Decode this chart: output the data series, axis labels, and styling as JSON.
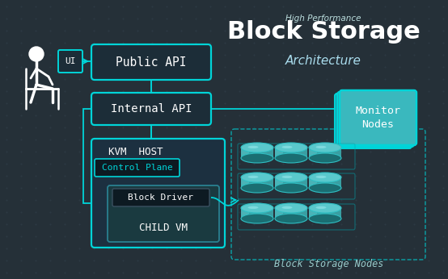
{
  "bg_color": "#253038",
  "cyan": "#00d4d8",
  "dark_box": "#1c2d38",
  "darker_box": "#0d1a22",
  "child_vm_box": "#1a3a40",
  "white": "#ffffff",
  "title_main": "Block Storage",
  "title_sub": "High Performance",
  "title_arch": "Architecture",
  "label_ui": "UI",
  "label_public_api": "Public API",
  "label_internal_api": "Internal API",
  "label_monitor": "Monitor\nNodes",
  "label_kvm": "KVM  HOST",
  "label_control_plane": "Control Plane",
  "label_block_driver": "Block Driver",
  "label_child_vm": "CHILD VM",
  "label_block_storage_nodes": "Block Storage Nodes",
  "disk_top": "#5ac8cc",
  "disk_mid": "#3a9ea2",
  "disk_dark": "#1a6e72",
  "disk_edge": "#30c0c4",
  "monitor_face": "#3ab8be",
  "monitor_side": "#2090a0"
}
